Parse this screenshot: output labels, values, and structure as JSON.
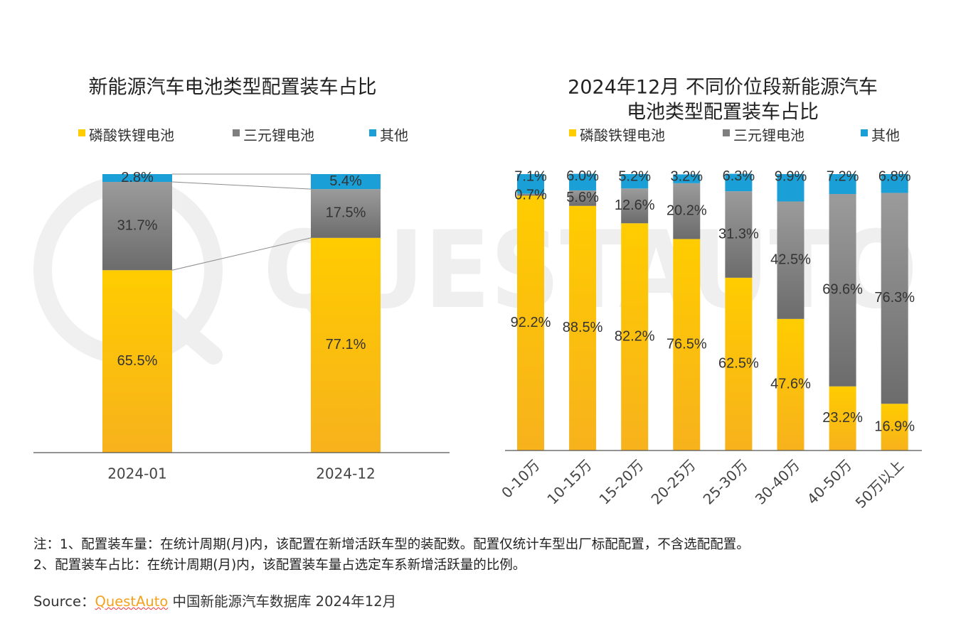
{
  "colors": {
    "lfp": "#f7b514",
    "lfp_top": "#ffcc00",
    "ncm": "#7f7f7f",
    "ncm_top": "#9a9a9a",
    "other": "#1a9fd6",
    "axis": "#555555"
  },
  "chart_data": [
    {
      "type": "bar",
      "stacked": true,
      "title": "新能源汽车电池类型配置装车占比",
      "legend": [
        "磷酸铁锂电池",
        "三元锂电池",
        "其他"
      ],
      "legend_position": "top",
      "categories": [
        "2024-01",
        "2024-12"
      ],
      "series": [
        {
          "name": "磷酸铁锂电池",
          "values": [
            65.5,
            77.1
          ],
          "labels": [
            "65.5%",
            "77.1%"
          ]
        },
        {
          "name": "三元锂电池",
          "values": [
            31.7,
            17.5
          ],
          "labels": [
            "31.7%",
            "17.5%"
          ]
        },
        {
          "name": "其他",
          "values": [
            2.8,
            5.4
          ],
          "labels": [
            "2.8%",
            "5.4%"
          ]
        }
      ],
      "ylim": [
        0,
        100
      ]
    },
    {
      "type": "bar",
      "stacked": true,
      "title_lines": [
        "2024年12月 不同价位段新能源汽车",
        "电池类型配置装车占比"
      ],
      "legend": [
        "磷酸铁锂电池",
        "三元锂电池",
        "其他"
      ],
      "legend_position": "top",
      "categories": [
        "0-10万",
        "10-15万",
        "15-20万",
        "20-25万",
        "25-30万",
        "30-40万",
        "40-50万",
        "50万以上"
      ],
      "series": [
        {
          "name": "磷酸铁锂电池",
          "values": [
            92.2,
            88.5,
            82.2,
            76.5,
            62.5,
            47.6,
            23.2,
            16.9
          ],
          "labels": [
            "92.2%",
            "88.5%",
            "82.2%",
            "76.5%",
            "62.5%",
            "47.6%",
            "23.2%",
            "16.9%"
          ]
        },
        {
          "name": "三元锂电池",
          "values": [
            0.7,
            5.6,
            12.6,
            20.2,
            31.3,
            42.5,
            69.6,
            76.3
          ],
          "labels": [
            "0.7%",
            "5.6%",
            "12.6%",
            "20.2%",
            "31.3%",
            "42.5%",
            "69.6%",
            "76.3%"
          ]
        },
        {
          "name": "其他",
          "values": [
            7.1,
            6.0,
            5.2,
            3.2,
            6.3,
            9.9,
            7.2,
            6.8
          ],
          "labels": [
            "7.1%",
            "6.0%",
            "5.2%",
            "3.2%",
            "6.3%",
            "9.9%",
            "7.2%",
            "6.8%"
          ]
        }
      ],
      "ylim": [
        0,
        100
      ]
    }
  ],
  "notes": {
    "line1": "注：1、配置装车量：在统计周期(月)内，该配置在新增活跃车型的装配数。配置仅统计车型出厂标配配置，不含选配配置。",
    "line2": "2、配置装车占比：在统计周期(月)内，该配置装车量占选定车系新增活跃量的比例。"
  },
  "source": {
    "prefix": "Source：",
    "brand": "QuestAuto",
    "suffix": " 中国新能源汽车数据库 2024年12月"
  },
  "watermark": "QUESTAUTO"
}
